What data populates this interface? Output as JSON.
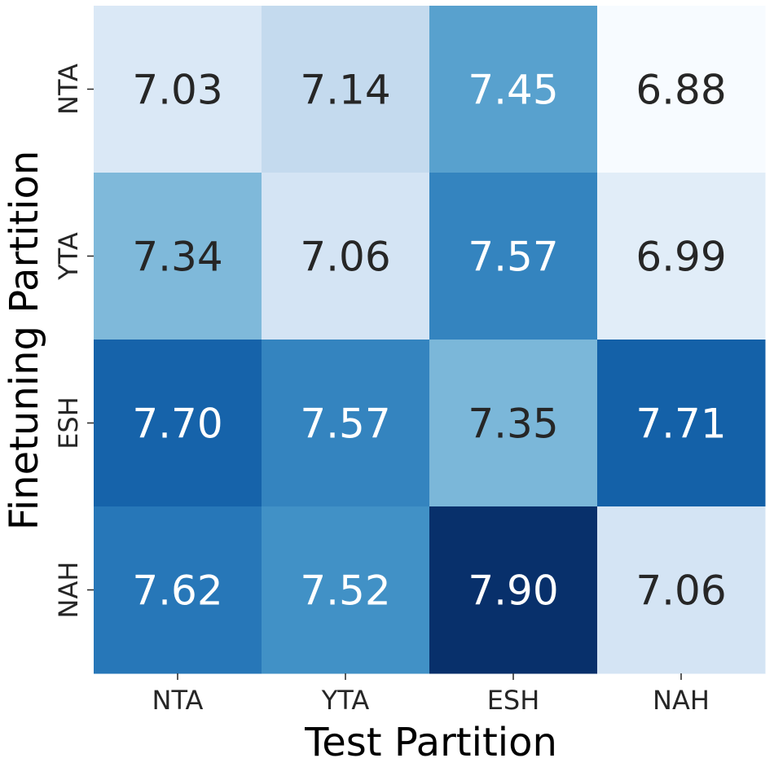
{
  "chart_data": {
    "type": "heatmap",
    "xlabel": "Test Partition",
    "ylabel": "Finetuning Partition",
    "x_categories": [
      "NTA",
      "YTA",
      "ESH",
      "NAH"
    ],
    "y_categories": [
      "NTA",
      "YTA",
      "ESH",
      "NAH"
    ],
    "values": [
      [
        7.03,
        7.14,
        7.45,
        6.88
      ],
      [
        7.34,
        7.06,
        7.57,
        6.99
      ],
      [
        7.7,
        7.57,
        7.35,
        7.71
      ],
      [
        7.62,
        7.52,
        7.9,
        7.06
      ]
    ],
    "value_labels": [
      [
        "7.03",
        "7.14",
        "7.45",
        "6.88"
      ],
      [
        "7.34",
        "7.06",
        "7.57",
        "6.99"
      ],
      [
        "7.70",
        "7.57",
        "7.35",
        "7.71"
      ],
      [
        "7.62",
        "7.52",
        "7.90",
        "7.06"
      ]
    ],
    "colormap": "Blues",
    "color_range": [
      6.88,
      7.9
    ],
    "colorbar": false,
    "grid": false,
    "annotation_colors": {
      "dark": "#262626",
      "light": "#ffffff"
    }
  }
}
